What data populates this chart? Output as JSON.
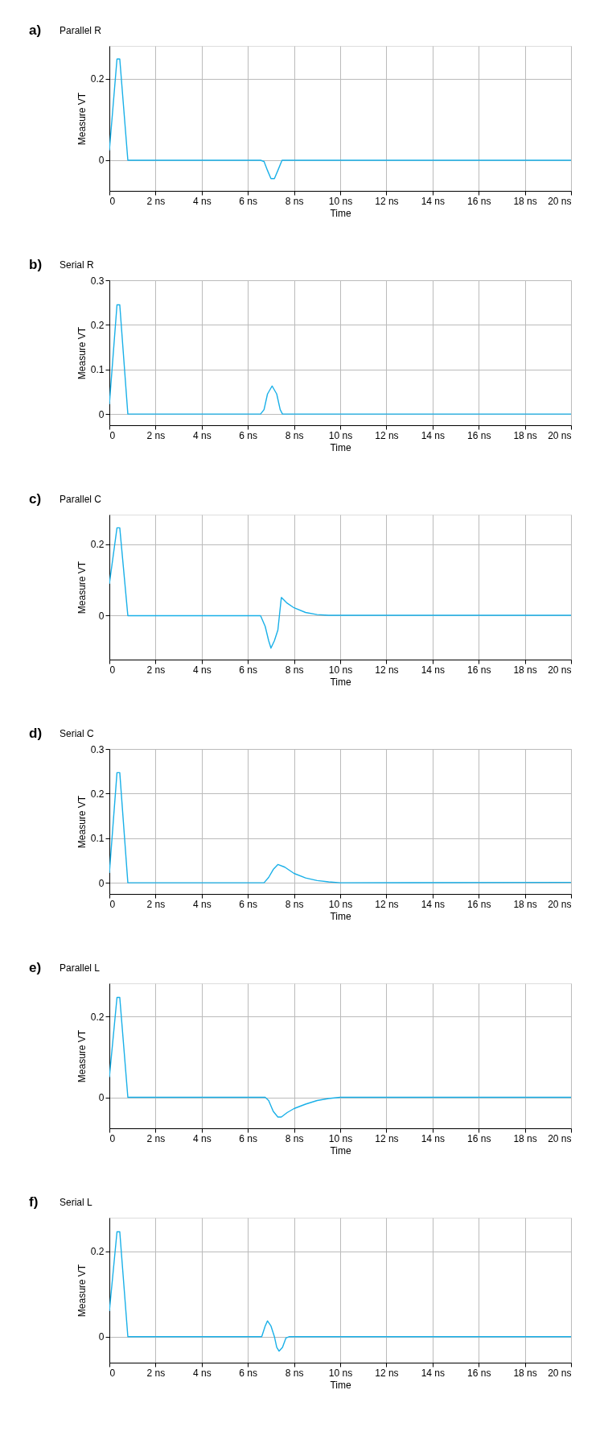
{
  "chart_data": [
    {
      "type": "line",
      "title": "Parallel R",
      "annotations": [
        "a)"
      ],
      "xlabel": "Time",
      "ylabel": "Measure VT",
      "grid": true,
      "marker": "none",
      "line_style": "solid",
      "xlim": [
        0,
        20
      ],
      "xticks": [
        0,
        {
          "value": 2,
          "label": "2 ns"
        },
        {
          "value": 4,
          "label": "4 ns"
        },
        {
          "value": 6,
          "label": "6 ns"
        },
        {
          "value": 8,
          "label": "8 ns"
        },
        {
          "value": 10,
          "label": "10 ns"
        },
        {
          "value": 12,
          "label": "12 ns"
        },
        {
          "value": 14,
          "label": "14 ns"
        },
        {
          "value": 16,
          "label": "16 ns"
        },
        {
          "value": 18,
          "label": "18 ns"
        },
        {
          "value": 20,
          "label": "20 ns"
        }
      ],
      "ylim": [
        -0.075,
        0.28
      ],
      "yticks": [
        0,
        0.2
      ],
      "series": [
        {
          "color": "#1ab0e8",
          "x": [
            0,
            0.33,
            0.45,
            0.8,
            6.55,
            6.7,
            6.85,
            7.0,
            7.15,
            7.3,
            7.48,
            20
          ],
          "values": [
            0.024,
            0.248,
            0.248,
            0,
            0,
            -0.003,
            -0.025,
            -0.045,
            -0.045,
            -0.025,
            0,
            0
          ]
        }
      ]
    },
    {
      "type": "line",
      "title": "Serial R",
      "annotations": [
        "b)"
      ],
      "xlabel": "Time",
      "ylabel": "Measure VT",
      "grid": true,
      "marker": "none",
      "line_style": "solid",
      "xlim": [
        0,
        20
      ],
      "xticks": [
        0,
        {
          "value": 2,
          "label": "2 ns"
        },
        {
          "value": 4,
          "label": "4 ns"
        },
        {
          "value": 6,
          "label": "6 ns"
        },
        {
          "value": 8,
          "label": "8 ns"
        },
        {
          "value": 10,
          "label": "10 ns"
        },
        {
          "value": 12,
          "label": "12 ns"
        },
        {
          "value": 14,
          "label": "14 ns"
        },
        {
          "value": 16,
          "label": "16 ns"
        },
        {
          "value": 18,
          "label": "18 ns"
        },
        {
          "value": 20,
          "label": "20 ns"
        }
      ],
      "ylim": [
        -0.025,
        0.3
      ],
      "yticks": [
        0,
        0.1,
        0.2,
        0.3
      ],
      "series": [
        {
          "color": "#1ab0e8",
          "x": [
            0,
            0.33,
            0.45,
            0.8,
            6.55,
            6.7,
            6.85,
            7.05,
            7.25,
            7.4,
            7.5,
            20
          ],
          "values": [
            0.022,
            0.245,
            0.245,
            0,
            0,
            0.01,
            0.045,
            0.063,
            0.045,
            0.01,
            0,
            0
          ]
        }
      ]
    },
    {
      "type": "line",
      "title": "Parallel C",
      "annotations": [
        "c)"
      ],
      "xlabel": "Time",
      "ylabel": "Measure VT",
      "grid": true,
      "marker": "none",
      "line_style": "solid",
      "xlim": [
        0,
        20
      ],
      "xticks": [
        0,
        {
          "value": 2,
          "label": "2 ns"
        },
        {
          "value": 4,
          "label": "4 ns"
        },
        {
          "value": 6,
          "label": "6 ns"
        },
        {
          "value": 8,
          "label": "8 ns"
        },
        {
          "value": 10,
          "label": "10 ns"
        },
        {
          "value": 12,
          "label": "12 ns"
        },
        {
          "value": 14,
          "label": "14 ns"
        },
        {
          "value": 16,
          "label": "16 ns"
        },
        {
          "value": 18,
          "label": "18 ns"
        },
        {
          "value": 20,
          "label": "20 ns"
        }
      ],
      "ylim": [
        -0.123,
        0.283
      ],
      "yticks": [
        0,
        0.2
      ],
      "series": [
        {
          "color": "#1ab0e8",
          "x": [
            0,
            0.33,
            0.45,
            0.8,
            6.55,
            6.75,
            6.9,
            7.0,
            7.15,
            7.3,
            7.45,
            7.7,
            8.0,
            8.5,
            9.0,
            9.5,
            20
          ],
          "values": [
            0.089,
            0.246,
            0.246,
            0,
            0,
            -0.03,
            -0.07,
            -0.091,
            -0.07,
            -0.04,
            0.051,
            0.035,
            0.022,
            0.009,
            0.003,
            0.001,
            0.001
          ]
        }
      ]
    },
    {
      "type": "line",
      "title": "Serial C",
      "annotations": [
        "d)"
      ],
      "xlabel": "Time",
      "ylabel": "Measure VT",
      "grid": true,
      "marker": "none",
      "line_style": "solid",
      "xlim": [
        0,
        20
      ],
      "xticks": [
        0,
        {
          "value": 2,
          "label": "2 ns"
        },
        {
          "value": 4,
          "label": "4 ns"
        },
        {
          "value": 6,
          "label": "6 ns"
        },
        {
          "value": 8,
          "label": "8 ns"
        },
        {
          "value": 10,
          "label": "10 ns"
        },
        {
          "value": 12,
          "label": "12 ns"
        },
        {
          "value": 14,
          "label": "14 ns"
        },
        {
          "value": 16,
          "label": "16 ns"
        },
        {
          "value": 18,
          "label": "18 ns"
        },
        {
          "value": 20,
          "label": "20 ns"
        }
      ],
      "ylim": [
        -0.025,
        0.3
      ],
      "yticks": [
        0,
        0.1,
        0.2,
        0.3
      ],
      "series": [
        {
          "color": "#1ab0e8",
          "x": [
            0,
            0.33,
            0.45,
            0.8,
            6.7,
            6.9,
            7.1,
            7.3,
            7.6,
            8.0,
            8.5,
            9.0,
            9.5,
            10.0,
            20
          ],
          "values": [
            0.022,
            0.247,
            0.247,
            0,
            0,
            0.012,
            0.03,
            0.041,
            0.035,
            0.021,
            0.011,
            0.005,
            0.002,
            0,
            0.001
          ]
        }
      ]
    },
    {
      "type": "line",
      "title": "Parallel L",
      "annotations": [
        "e)"
      ],
      "xlabel": "Time",
      "ylabel": "Measure VT",
      "grid": true,
      "marker": "none",
      "line_style": "solid",
      "xlim": [
        0,
        20
      ],
      "xticks": [
        0,
        {
          "value": 2,
          "label": "2 ns"
        },
        {
          "value": 4,
          "label": "4 ns"
        },
        {
          "value": 6,
          "label": "6 ns"
        },
        {
          "value": 8,
          "label": "8 ns"
        },
        {
          "value": 10,
          "label": "10 ns"
        },
        {
          "value": 12,
          "label": "12 ns"
        },
        {
          "value": 14,
          "label": "14 ns"
        },
        {
          "value": 16,
          "label": "16 ns"
        },
        {
          "value": 18,
          "label": "18 ns"
        },
        {
          "value": 20,
          "label": "20 ns"
        }
      ],
      "ylim": [
        -0.077,
        0.283
      ],
      "yticks": [
        0,
        0.2
      ],
      "series": [
        {
          "color": "#1ab0e8",
          "x": [
            0,
            0.33,
            0.45,
            0.8,
            6.75,
            6.9,
            7.1,
            7.3,
            7.45,
            7.7,
            8.0,
            8.5,
            9.0,
            9.5,
            10.0,
            20
          ],
          "values": [
            0.05,
            0.248,
            0.248,
            0,
            0,
            -0.008,
            -0.035,
            -0.049,
            -0.049,
            -0.038,
            -0.028,
            -0.017,
            -0.008,
            -0.003,
            0,
            0
          ]
        }
      ]
    },
    {
      "type": "line",
      "title": "Serial L",
      "annotations": [
        "f)"
      ],
      "xlabel": "Time",
      "ylabel": "Measure VT",
      "grid": true,
      "marker": "none",
      "line_style": "solid",
      "xlim": [
        0,
        20
      ],
      "xticks": [
        0,
        {
          "value": 2,
          "label": "2 ns"
        },
        {
          "value": 4,
          "label": "4 ns"
        },
        {
          "value": 6,
          "label": "6 ns"
        },
        {
          "value": 8,
          "label": "8 ns"
        },
        {
          "value": 10,
          "label": "10 ns"
        },
        {
          "value": 12,
          "label": "12 ns"
        },
        {
          "value": 14,
          "label": "14 ns"
        },
        {
          "value": 16,
          "label": "16 ns"
        },
        {
          "value": 18,
          "label": "18 ns"
        },
        {
          "value": 20,
          "label": "20 ns"
        }
      ],
      "ylim": [
        -0.061,
        0.279
      ],
      "yticks": [
        0,
        0.2
      ],
      "series": [
        {
          "color": "#1ab0e8",
          "x": [
            0,
            0.33,
            0.45,
            0.8,
            6.6,
            6.75,
            6.85,
            7.0,
            7.15,
            7.25,
            7.35,
            7.5,
            7.65,
            7.8,
            20
          ],
          "values": [
            0.06,
            0.246,
            0.246,
            0,
            0,
            0.025,
            0.037,
            0.025,
            0,
            -0.025,
            -0.034,
            -0.025,
            -0.003,
            0,
            0
          ]
        }
      ]
    }
  ]
}
